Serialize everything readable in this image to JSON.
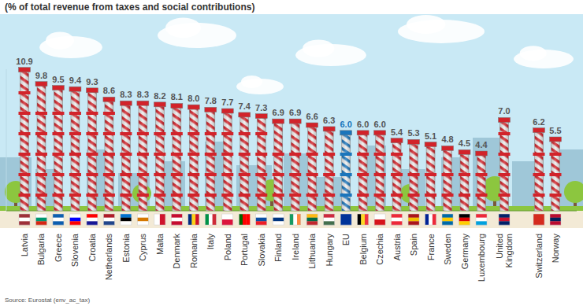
{
  "chart_data": {
    "type": "bar",
    "subtitle": "(% of total revenue from taxes and social contributions)",
    "source": "Source: Eurostat (env_ac_tax)",
    "categories": [
      "Latvia",
      "Bulgaria",
      "Greece",
      "Slovenia",
      "Croatia",
      "Netherlands",
      "Estonia",
      "Cyprus",
      "Malta",
      "Denmark",
      "Romania",
      "Italy",
      "Poland",
      "Portugal",
      "Slovakia",
      "Finland",
      "Ireland",
      "Lithuania",
      "Hungary",
      "EU",
      "Belgium",
      "Czechia",
      "Austria",
      "Spain",
      "France",
      "Sweden",
      "Germany",
      "Luxembourg",
      "United Kingdom",
      "Switzerland",
      "Norway"
    ],
    "values": [
      10.9,
      9.8,
      9.5,
      9.4,
      9.3,
      8.6,
      8.3,
      8.3,
      8.2,
      8.1,
      8.0,
      7.8,
      7.7,
      7.4,
      7.3,
      6.9,
      6.9,
      6.6,
      6.3,
      6.0,
      6.0,
      6.0,
      5.4,
      5.3,
      5.1,
      4.8,
      4.5,
      4.4,
      7.0,
      6.2,
      5.5
    ],
    "value_labels": [
      "10.9",
      "9.8",
      "9.5",
      "9.4",
      "9.3",
      "8.6",
      "8.3",
      "8.3",
      "8.2",
      "8.1",
      "8.0",
      "7.8",
      "7.7",
      "7.4",
      "7.3",
      "6.9",
      "6.9",
      "6.6",
      "6.3",
      "6.0",
      "6.0",
      "6.0",
      "5.4",
      "5.3",
      "5.1",
      "4.8",
      "4.5",
      "4.4",
      "7.0",
      "6.2",
      "5.5"
    ],
    "colors": [
      "#d2232a",
      "#d2232a",
      "#d2232a",
      "#d2232a",
      "#d2232a",
      "#d2232a",
      "#d2232a",
      "#d2232a",
      "#d2232a",
      "#d2232a",
      "#d2232a",
      "#d2232a",
      "#d2232a",
      "#d2232a",
      "#d2232a",
      "#d2232a",
      "#d2232a",
      "#d2232a",
      "#d2232a",
      "#1b75bb",
      "#d2232a",
      "#d2232a",
      "#d2232a",
      "#d2232a",
      "#d2232a",
      "#d2232a",
      "#d2232a",
      "#d2232a",
      "#d2232a",
      "#d2232a",
      "#d2232a"
    ],
    "ylim": [
      0,
      11
    ],
    "grid": false,
    "data_labels": true,
    "tick_labels": false
  }
}
